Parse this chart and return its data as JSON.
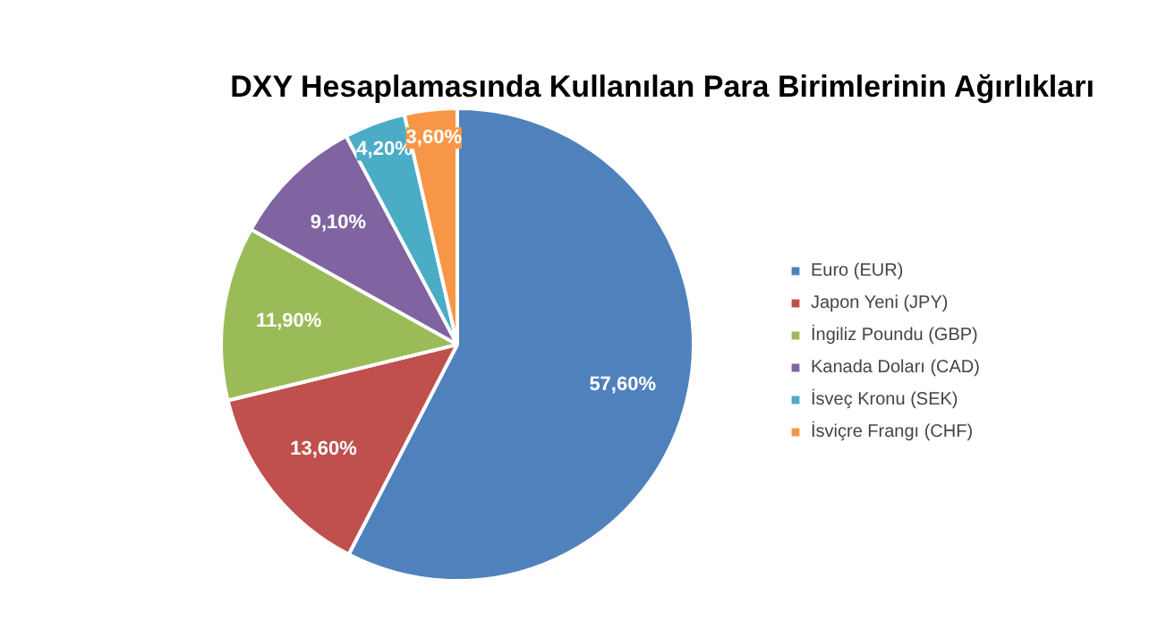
{
  "chart_data": {
    "type": "pie",
    "title": "DXY Hesaplamasında Kullanılan Para Birimlerinin Ağırlıkları",
    "categories": [
      "Euro (EUR)",
      "Japon Yeni (JPY)",
      "İngiliz Poundu (GBP)",
      "Kanada Doları (CAD)",
      "İsveç Kronu (SEK)",
      "İsviçre Frangı (CHF)"
    ],
    "values": [
      57.6,
      13.6,
      11.9,
      9.1,
      4.2,
      3.6
    ],
    "value_labels": [
      "57,60%",
      "13,60%",
      "11,90%",
      "9,10%",
      "4,20%",
      "3,60%"
    ],
    "colors": [
      "#4f81bd",
      "#c0504d",
      "#9bbb59",
      "#8064a2",
      "#4bacc6",
      "#f79646"
    ],
    "legend": "right"
  }
}
